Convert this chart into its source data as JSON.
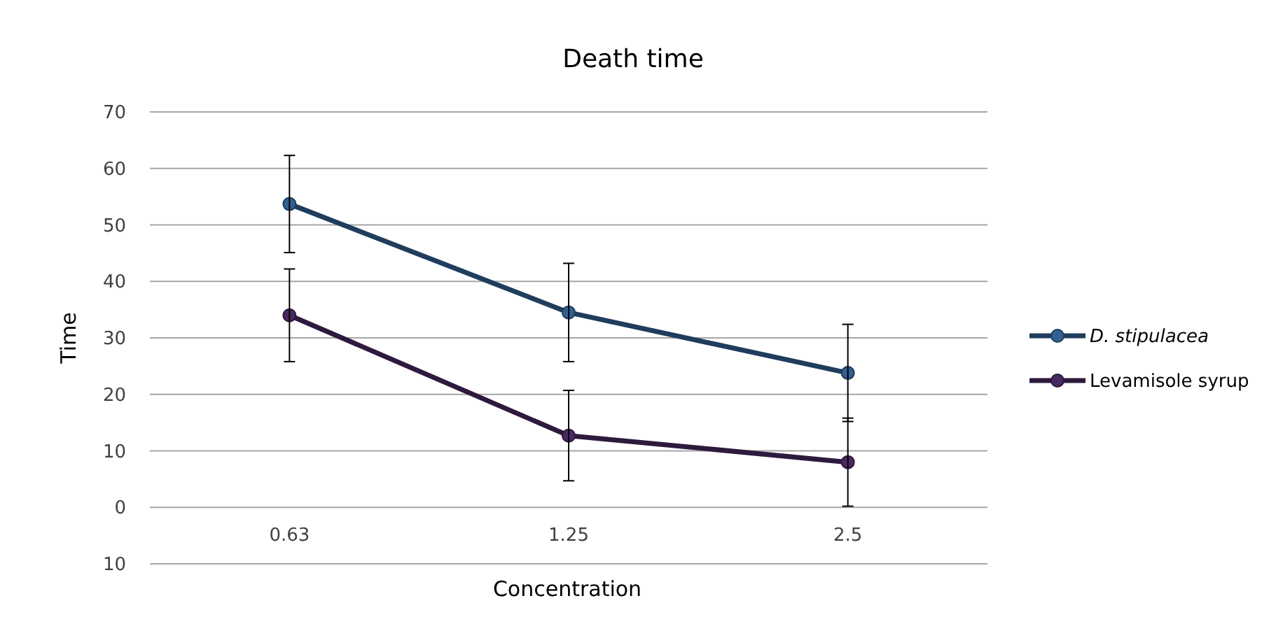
{
  "chart_data": {
    "type": "line",
    "title": "Death time",
    "xlabel": "Concentration",
    "ylabel": "Time",
    "categories": [
      "0.63",
      "1.25",
      "2.5"
    ],
    "series": [
      {
        "name": "D. stipulacea",
        "color": "#1f3d5c",
        "values": [
          53.7,
          34.5,
          23.8
        ],
        "errors": [
          8.6,
          8.7,
          8.6
        ]
      },
      {
        "name": "Levamisole syrup",
        "color": "#2e1a3d",
        "values": [
          34,
          12.7,
          8
        ],
        "errors": [
          8.2,
          8,
          7.8
        ]
      }
    ],
    "ylim": [
      -10,
      70
    ],
    "yticks": [
      {
        "value": -10,
        "label": "10"
      },
      0,
      10,
      20,
      30,
      40,
      50,
      60,
      70
    ],
    "grid": "y",
    "legend": "right",
    "marker": "circle",
    "line_style": "solid"
  }
}
